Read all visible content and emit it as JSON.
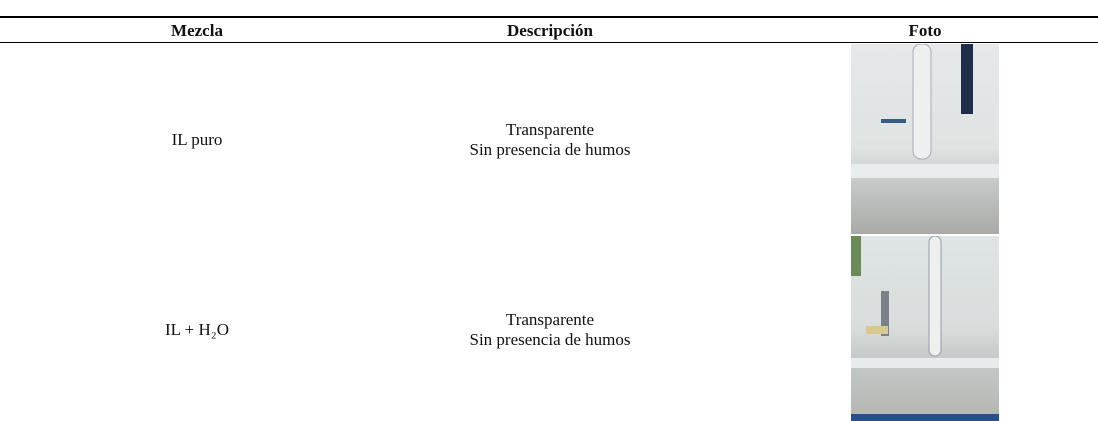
{
  "table": {
    "header": [
      "Mezcla",
      "Descripción",
      "Foto"
    ],
    "rows": [
      {
        "mezcla": "IL puro",
        "descripcion": [
          "Transparente",
          "Sin presencia de humos"
        ]
      },
      {
        "mezcla": "IL + H₂O",
        "descripcion": [
          "Transparente",
          "Sin presencia de humos"
        ]
      }
    ]
  }
}
